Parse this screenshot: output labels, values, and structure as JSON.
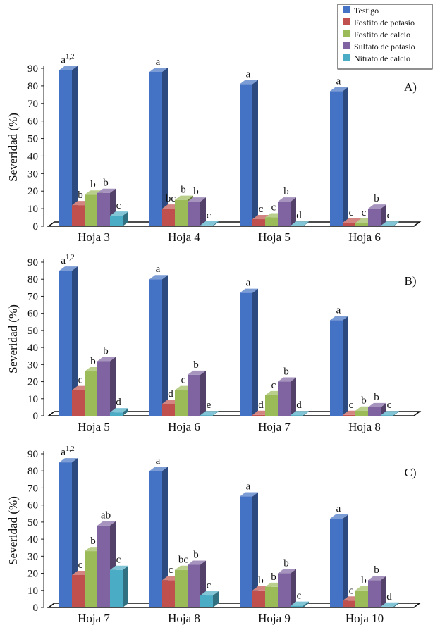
{
  "colors": {
    "Testigo": "#4472C4",
    "Fosfito de potasio": "#C0504D",
    "Fosfito de calcio": "#9BBB59",
    "Sulfato de potasio": "#8064A2",
    "Nitrato de calcio": "#4BACC6"
  },
  "legend": {
    "items": [
      "Testigo",
      "Fosfito de potasio",
      "Fosfito de calcio",
      "Sulfato de potasio",
      "Nitrato de calcio"
    ]
  },
  "chart_data": [
    {
      "type": "bar",
      "panel_label": "A)",
      "ylabel": "Severidad (%)",
      "xlabel": "",
      "ylim": [
        0,
        90
      ],
      "yticks": [
        0,
        10,
        20,
        30,
        40,
        50,
        60,
        70,
        80,
        90
      ],
      "categories": [
        "Hoja 3",
        "Hoja 4",
        "Hoja 5",
        "Hoja 6"
      ],
      "series": [
        {
          "name": "Testigo",
          "values": [
            89,
            88,
            81,
            77
          ],
          "labels": [
            "a1,2",
            "a",
            "a",
            "a"
          ]
        },
        {
          "name": "Fosfito de potasio",
          "values": [
            12,
            10,
            4,
            2
          ],
          "labels": [
            "b",
            "bc",
            "c",
            "c"
          ]
        },
        {
          "name": "Fosfito de calcio",
          "values": [
            18,
            15,
            5,
            2
          ],
          "labels": [
            "b",
            "b",
            "c",
            "c"
          ]
        },
        {
          "name": "Sulfato de potasio",
          "values": [
            19,
            14,
            14,
            10
          ],
          "labels": [
            "b",
            "b",
            "b",
            "b"
          ]
        },
        {
          "name": "Nitrato de calcio",
          "values": [
            6,
            0.5,
            0.3,
            0.3
          ],
          "labels": [
            "c",
            "c",
            "d",
            "c"
          ]
        }
      ]
    },
    {
      "type": "bar",
      "panel_label": "B)",
      "ylabel": "Severidad (%)",
      "xlabel": "",
      "ylim": [
        0,
        90
      ],
      "yticks": [
        0,
        10,
        20,
        30,
        40,
        50,
        60,
        70,
        80,
        90
      ],
      "categories": [
        "Hoja 5",
        "Hoja 6",
        "Hoja 7",
        "Hoja 8"
      ],
      "series": [
        {
          "name": "Testigo",
          "values": [
            85,
            80,
            72,
            56
          ],
          "labels": [
            "a1,2",
            "a",
            "a",
            "a"
          ]
        },
        {
          "name": "Fosfito de potasio",
          "values": [
            15,
            7,
            0.5,
            0.5
          ],
          "labels": [
            "c",
            "d",
            "d",
            "c"
          ]
        },
        {
          "name": "Fosfito de calcio",
          "values": [
            26,
            15,
            12,
            3
          ],
          "labels": [
            "b",
            "c",
            "c",
            "b"
          ]
        },
        {
          "name": "Sulfato de potasio",
          "values": [
            32,
            24,
            20,
            5
          ],
          "labels": [
            "b",
            "b",
            "b",
            "b"
          ]
        },
        {
          "name": "Nitrato de calcio",
          "values": [
            2,
            0.3,
            0.3,
            0.3
          ],
          "labels": [
            "d",
            "e",
            "d",
            "c"
          ]
        }
      ]
    },
    {
      "type": "bar",
      "panel_label": "C)",
      "ylabel": "Severidad (%)",
      "xlabel": "",
      "ylim": [
        0,
        90
      ],
      "yticks": [
        0,
        10,
        20,
        30,
        40,
        50,
        60,
        70,
        80,
        90
      ],
      "categories": [
        "Hoja 7",
        "Hoja 8",
        "Hoja 9",
        "Hoja 10"
      ],
      "series": [
        {
          "name": "Testigo",
          "values": [
            85,
            80,
            65,
            52
          ],
          "labels": [
            "a1,2",
            "a",
            "a",
            "a"
          ]
        },
        {
          "name": "Fosfito de potasio",
          "values": [
            19,
            16,
            10,
            4
          ],
          "labels": [
            "c",
            "c",
            "b",
            "c"
          ]
        },
        {
          "name": "Fosfito de calcio",
          "values": [
            33,
            22,
            12,
            10
          ],
          "labels": [
            "b",
            "bc",
            "b",
            "b"
          ]
        },
        {
          "name": "Sulfato de potasio",
          "values": [
            48,
            25,
            20,
            16
          ],
          "labels": [
            "ab",
            "b",
            "b",
            "b"
          ]
        },
        {
          "name": "Nitrato de calcio",
          "values": [
            22,
            7,
            1,
            0.5
          ],
          "labels": [
            "c",
            "c",
            "c",
            "d"
          ]
        }
      ]
    }
  ]
}
